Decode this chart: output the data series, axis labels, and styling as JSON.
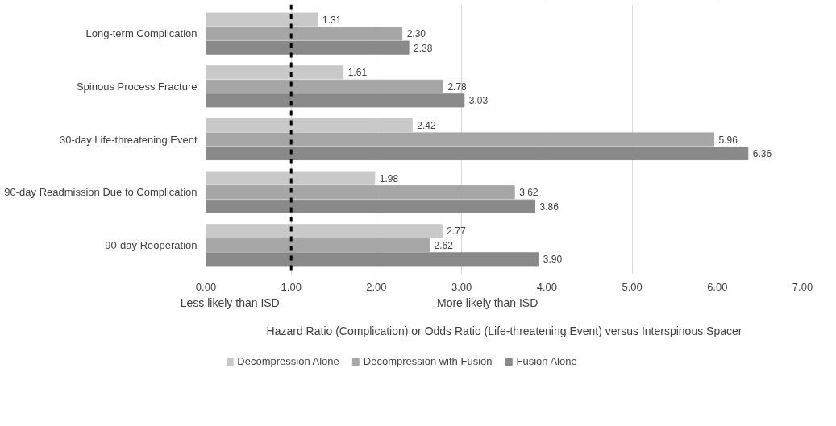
{
  "chart_data": {
    "type": "bar",
    "orientation": "horizontal",
    "categories": [
      "Long-term Complication",
      "Spinous Process Fracture",
      "30-day Life-threatening Event",
      "90-day Readmission Due to Complication",
      "90-day Reoperation"
    ],
    "series": [
      {
        "name": "Decompression Alone",
        "color": "#c9c9c9",
        "values": [
          1.31,
          1.61,
          2.42,
          1.98,
          2.77
        ],
        "value_labels": [
          "1.31",
          "1.61",
          "2.42",
          "1.98",
          "2.77"
        ]
      },
      {
        "name": "Decompression with Fusion",
        "color": "#a6a6a6",
        "values": [
          2.3,
          2.78,
          5.96,
          3.62,
          2.62
        ],
        "value_labels": [
          "2.30",
          "2.78",
          "5.96",
          "3.62",
          "2.62"
        ]
      },
      {
        "name": "Fusion Alone",
        "color": "#898989",
        "values": [
          2.38,
          3.03,
          6.36,
          3.86,
          3.9
        ],
        "value_labels": [
          "2.38",
          "3.03",
          "6.36",
          "3.86",
          "3.90"
        ]
      }
    ],
    "xlim": [
      0,
      7
    ],
    "xticks": [
      {
        "value": 0,
        "label": "0.00"
      },
      {
        "value": 1,
        "label": "1.00"
      },
      {
        "value": 2,
        "label": "2.00"
      },
      {
        "value": 3,
        "label": "3.00"
      },
      {
        "value": 4,
        "label": "4.00"
      },
      {
        "value": 5,
        "label": "5.00"
      },
      {
        "value": 6,
        "label": "6.00"
      },
      {
        "value": 7,
        "label": "7.00"
      }
    ],
    "xlabel": "Hazard Ratio (Complication) or Odds Ratio (Life-threatening Event) versus Interspinous Spacer",
    "annotations": [
      "Less likely than ISD",
      "More likely than ISD"
    ],
    "ref_lines": [
      {
        "axis": "x",
        "value": 1,
        "color": "#000000",
        "line_style": "dashed"
      }
    ],
    "grid": "x",
    "legend": "bottom"
  }
}
